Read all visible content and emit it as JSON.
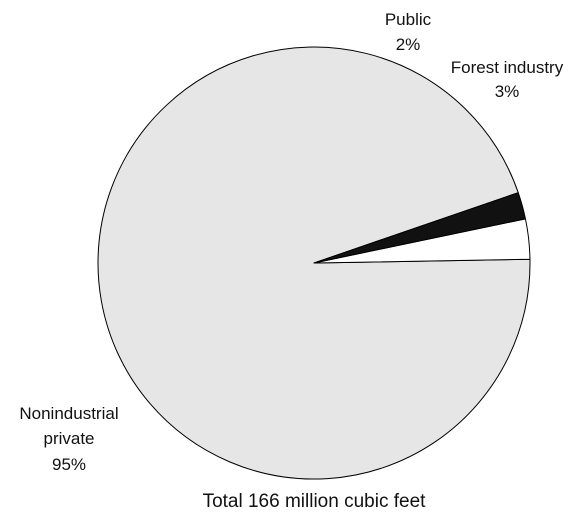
{
  "chart_data": {
    "type": "pie",
    "caption": "Total 166 million cubic feet",
    "slices": [
      {
        "label_lines": [
          "Public"
        ],
        "value_label": "2%",
        "value": 2,
        "color": "#111111"
      },
      {
        "label_lines": [
          "Forest industry"
        ],
        "value_label": "3%",
        "value": 3,
        "color": "#ffffff"
      },
      {
        "label_lines": [
          "Nonindustrial",
          "private"
        ],
        "value_label": "95%",
        "value": 95,
        "color": "#e6e6e6"
      }
    ]
  }
}
